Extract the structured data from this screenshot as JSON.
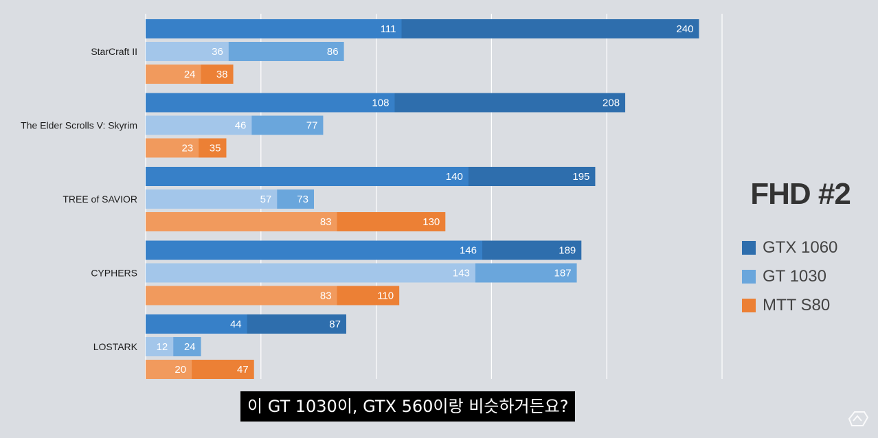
{
  "chart_data": {
    "type": "bar",
    "orientation": "horizontal",
    "title": "FHD #2",
    "categories": [
      "StarCraft II",
      "The Elder Scrolls V: Skyrim",
      "TREE of SAVIOR",
      "CYPHERS",
      "LOSTARK"
    ],
    "series": [
      {
        "name": "GTX 1060",
        "color": "#2e6ead",
        "inner_color": "#3780c8",
        "min": [
          111,
          108,
          140,
          146,
          44
        ],
        "max": [
          240,
          208,
          195,
          189,
          87
        ]
      },
      {
        "name": "GT 1030",
        "color": "#6aa6dc",
        "inner_color": "#a3c6ea",
        "min": [
          36,
          46,
          57,
          143,
          12
        ],
        "max": [
          86,
          77,
          73,
          187,
          24
        ]
      },
      {
        "name": "MTT S80",
        "color": "#ec8035",
        "inner_color": "#f19a5d",
        "min": [
          24,
          23,
          83,
          83,
          20
        ],
        "max": [
          38,
          35,
          130,
          110,
          47
        ]
      }
    ],
    "xlim": [
      0,
      250
    ],
    "grid": true,
    "legend_position": "right"
  },
  "subtitle": "이 GT 1030이, GTX 560이랑 비슷하거든요?",
  "watermark_icon": "brand-logo-icon"
}
